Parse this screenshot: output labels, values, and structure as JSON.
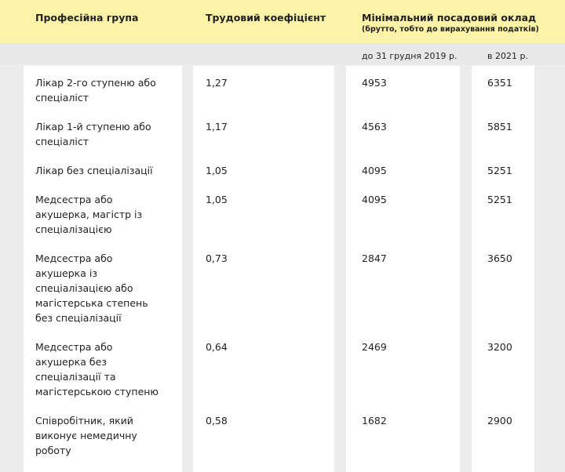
{
  "header": {
    "profession": "Професійна група",
    "coefficient": "Трудовий коефіцієнт",
    "salary_title": "Мінімальний посадовий оклад",
    "salary_subtitle": "(брутто, тобто до вирахування податків)"
  },
  "subheader": {
    "before": "до 31 грудня 2019 р.",
    "after": "в 2021 р."
  },
  "table": {
    "rows": [
      [
        "Лікар 2-го ступеню або спеціаліст",
        "1,27",
        "4953",
        "6351"
      ],
      [
        "Лікар 1-й ступеню або спеціаліст",
        "1,17",
        "4563",
        "5851"
      ],
      [
        "Лікар без спеціалізації",
        "1,05",
        "4095",
        "5251"
      ],
      [
        "Медсестра або  акушерка, магістр із спеціалізацією",
        "1,05",
        "4095",
        "5251"
      ],
      [
        "Медсестра або акушерка із спеціалізацією або магістерська степень без спеціалізації",
        "0,73",
        "2847",
        "3650"
      ],
      [
        "Медсестра або акушерка без спеціалізації та магістерською ступеню",
        "0,64",
        "2469",
        "3200"
      ],
      [
        "Співробітник, який виконує немедичну роботу",
        "0,58",
        "1682",
        "2900"
      ]
    ]
  }
}
